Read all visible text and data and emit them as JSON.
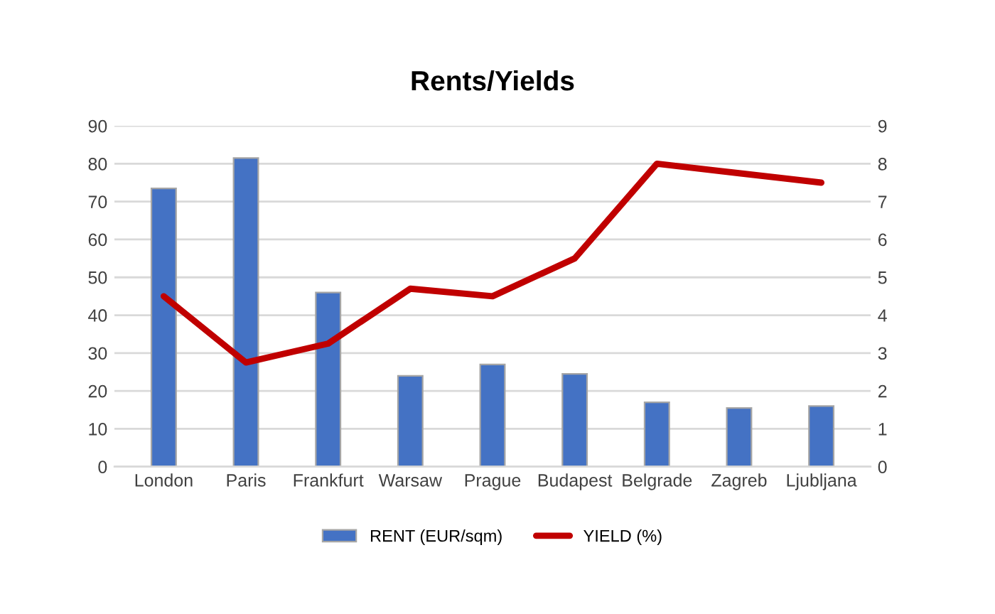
{
  "chart_data": {
    "type": "bar",
    "title": "Rents/Yields",
    "categories": [
      "London",
      "Paris",
      "Frankfurt",
      "Warsaw",
      "Prague",
      "Budapest",
      "Belgrade",
      "Zagreb",
      "Ljubljana"
    ],
    "series": [
      {
        "name": "RENT (EUR/sqm)",
        "color": "#4472c4",
        "values": [
          73.5,
          81.5,
          46,
          24,
          27,
          24.5,
          17,
          15.5,
          16
        ]
      },
      {
        "name": "YIELD (%)",
        "type": "line",
        "axis": "y2",
        "color": "#c00000",
        "values": [
          4.5,
          2.75,
          3.25,
          4.7,
          4.5,
          5.5,
          8.0,
          7.75,
          7.5
        ]
      }
    ],
    "ylim": [
      0,
      90
    ],
    "yticks": [
      0,
      10,
      20,
      30,
      40,
      50,
      60,
      70,
      80,
      90
    ],
    "y2lim": [
      0,
      9
    ],
    "y2ticks": [
      0,
      1,
      2,
      3,
      4,
      5,
      6,
      7,
      8,
      9
    ],
    "grid": "y",
    "legend": "bottom",
    "marker": "none",
    "line_style": "solid"
  }
}
